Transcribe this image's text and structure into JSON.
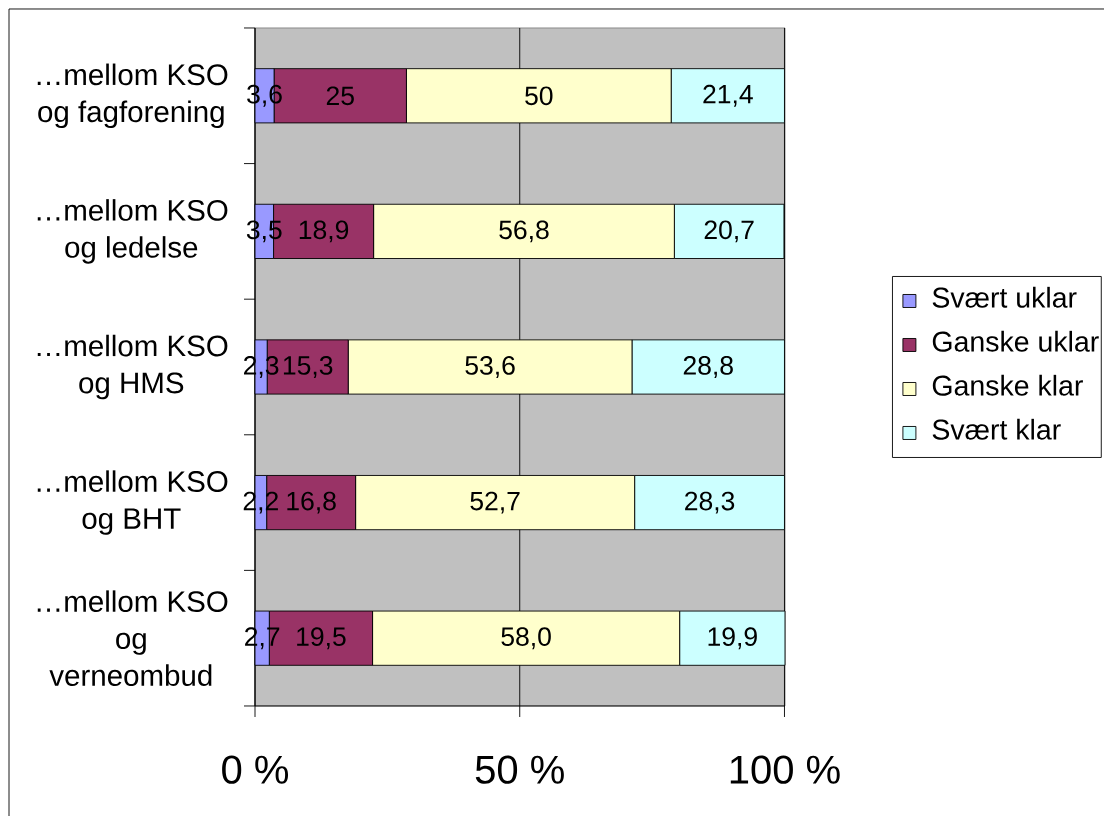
{
  "chart_data": {
    "type": "bar",
    "orientation": "horizontal",
    "stacked": true,
    "categories": [
      "…mellom KSO og fagforening",
      "…mellom KSO og ledelse",
      "…mellom KSO og HMS",
      "…mellom KSO og BHT",
      "…mellom KSO og verneombud"
    ],
    "series": [
      {
        "name": "Svært uklar",
        "color": "#9999ff",
        "values": [
          3.6,
          3.5,
          2.3,
          2.2,
          2.7
        ],
        "value_labels": [
          "3,6",
          "3,5",
          "2,3",
          "2,2",
          "2,7"
        ]
      },
      {
        "name": "Ganske uklar",
        "color": "#993366",
        "values": [
          25,
          18.9,
          15.3,
          16.8,
          19.5
        ],
        "value_labels": [
          "25",
          "18,9",
          "15,3",
          "16,8",
          "19,5"
        ]
      },
      {
        "name": "Ganske klar",
        "color": "#ffffcc",
        "values": [
          50,
          56.8,
          53.6,
          52.7,
          58.0
        ],
        "value_labels": [
          "50",
          "56,8",
          "53,6",
          "52,7",
          "58,0"
        ]
      },
      {
        "name": "Svært klar",
        "color": "#ccffff",
        "values": [
          21.4,
          20.7,
          28.8,
          28.3,
          19.9
        ],
        "value_labels": [
          "21,4",
          "20,7",
          "28,8",
          "28,3",
          "19,9"
        ]
      }
    ],
    "xlim": [
      0,
      100.1
    ],
    "xticks": [
      {
        "value": 0,
        "label": "0 %"
      },
      {
        "value": 50,
        "label": "50 %"
      },
      {
        "value": 100,
        "label": "100 %"
      }
    ],
    "grid": "x",
    "legend": "right"
  }
}
